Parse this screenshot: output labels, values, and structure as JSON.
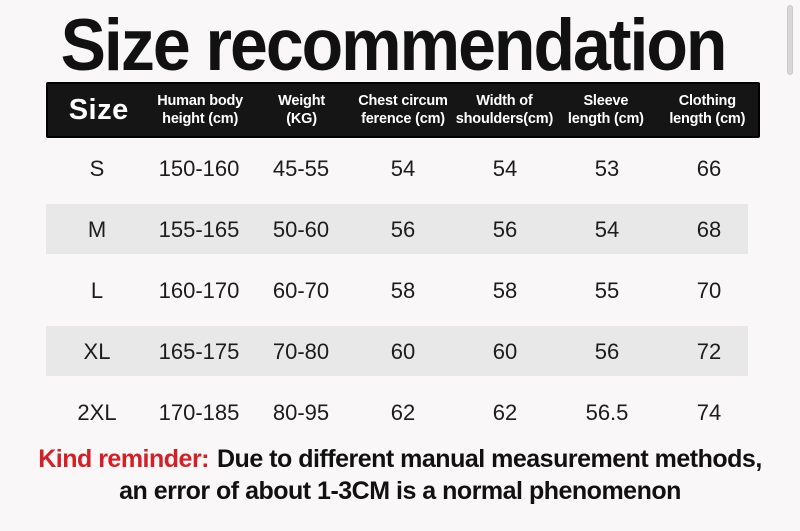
{
  "title": "Size recommendation",
  "colors": {
    "background": "#f9f7f7",
    "header_bg": "#151515",
    "header_text": "#ffffff",
    "stripe_gray": "#e9e8e8",
    "reminder_red": "#d41f26",
    "text": "#1c1c1c"
  },
  "table": {
    "columns": [
      {
        "line1": "Size",
        "line2": ""
      },
      {
        "line1": "Human body",
        "line2": "height (cm)"
      },
      {
        "line1": "Weight",
        "line2": "(KG)"
      },
      {
        "line1": "Chest circum",
        "line2": "ference (cm)"
      },
      {
        "line1": "Width of",
        "line2": "shoulders(cm)"
      },
      {
        "line1": "Sleeve",
        "line2": "length (cm)"
      },
      {
        "line1": "Clothing",
        "line2": "length (cm)"
      }
    ],
    "rows": [
      {
        "size": "S",
        "values": [
          "150-160",
          "45-55",
          "54",
          "54",
          "53",
          "66"
        ]
      },
      {
        "size": "M",
        "values": [
          "155-165",
          "50-60",
          "56",
          "56",
          "54",
          "68"
        ]
      },
      {
        "size": "L",
        "values": [
          "160-170",
          "60-70",
          "58",
          "58",
          "55",
          "70"
        ]
      },
      {
        "size": "XL",
        "values": [
          "165-175",
          "70-80",
          "60",
          "60",
          "56",
          "72"
        ]
      },
      {
        "size": "2XL",
        "values": [
          "170-185",
          "80-95",
          "62",
          "62",
          "56.5",
          "74"
        ]
      }
    ]
  },
  "reminder": {
    "label": "Kind reminder:",
    "line1_rest": "Due to different manual measurement methods,",
    "line2": "an error of about 1-3CM is a normal phenomenon"
  },
  "chart_data": {
    "type": "table",
    "title": "Size recommendation",
    "columns": [
      "Size",
      "Human body height (cm)",
      "Weight (KG)",
      "Chest circumference (cm)",
      "Width of shoulders (cm)",
      "Sleeve length (cm)",
      "Clothing length (cm)"
    ],
    "rows": [
      [
        "S",
        "150-160",
        "45-55",
        "54",
        "54",
        "53",
        "66"
      ],
      [
        "M",
        "155-165",
        "50-60",
        "56",
        "56",
        "54",
        "68"
      ],
      [
        "L",
        "160-170",
        "60-70",
        "58",
        "58",
        "55",
        "70"
      ],
      [
        "XL",
        "165-175",
        "70-80",
        "60",
        "60",
        "56",
        "72"
      ],
      [
        "2XL",
        "170-185",
        "80-95",
        "62",
        "62",
        "56.5",
        "74"
      ]
    ],
    "footnote": "Kind reminder: Due to different manual measurement methods, an error of about 1-3CM is a normal phenomenon"
  }
}
